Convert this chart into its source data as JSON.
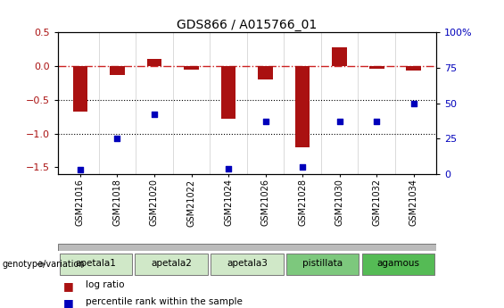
{
  "title": "GDS866 / A015766_01",
  "samples": [
    "GSM21016",
    "GSM21018",
    "GSM21020",
    "GSM21022",
    "GSM21024",
    "GSM21026",
    "GSM21028",
    "GSM21030",
    "GSM21032",
    "GSM21034"
  ],
  "log_ratio": [
    -0.68,
    -0.13,
    0.1,
    -0.05,
    -0.78,
    -0.2,
    -1.2,
    0.28,
    -0.04,
    -0.07
  ],
  "percentile_rank": [
    3,
    25,
    42,
    null,
    4,
    37,
    5,
    37,
    37,
    50
  ],
  "ylim_left": [
    -1.6,
    0.5
  ],
  "ylim_right": [
    0,
    100
  ],
  "yticks_left": [
    -1.5,
    -1.0,
    -0.5,
    0.0,
    0.5
  ],
  "yticks_right": [
    0,
    25,
    50,
    75,
    100
  ],
  "bar_color": "#aa1111",
  "dot_color": "#0000bb",
  "hline_color": "#cc2222",
  "groups": [
    {
      "label": "apetala1",
      "span": [
        0,
        2
      ],
      "color": "#d0e8c8"
    },
    {
      "label": "apetala2",
      "span": [
        2,
        4
      ],
      "color": "#d0e8c8"
    },
    {
      "label": "apetala3",
      "span": [
        4,
        6
      ],
      "color": "#d0e8c8"
    },
    {
      "label": "pistillata",
      "span": [
        6,
        8
      ],
      "color": "#7dc87d"
    },
    {
      "label": "agamous",
      "span": [
        8,
        10
      ],
      "color": "#55bb55"
    }
  ],
  "legend_bar_label": "log ratio",
  "legend_dot_label": "percentile rank within the sample",
  "genotype_label": "genotype/variation"
}
